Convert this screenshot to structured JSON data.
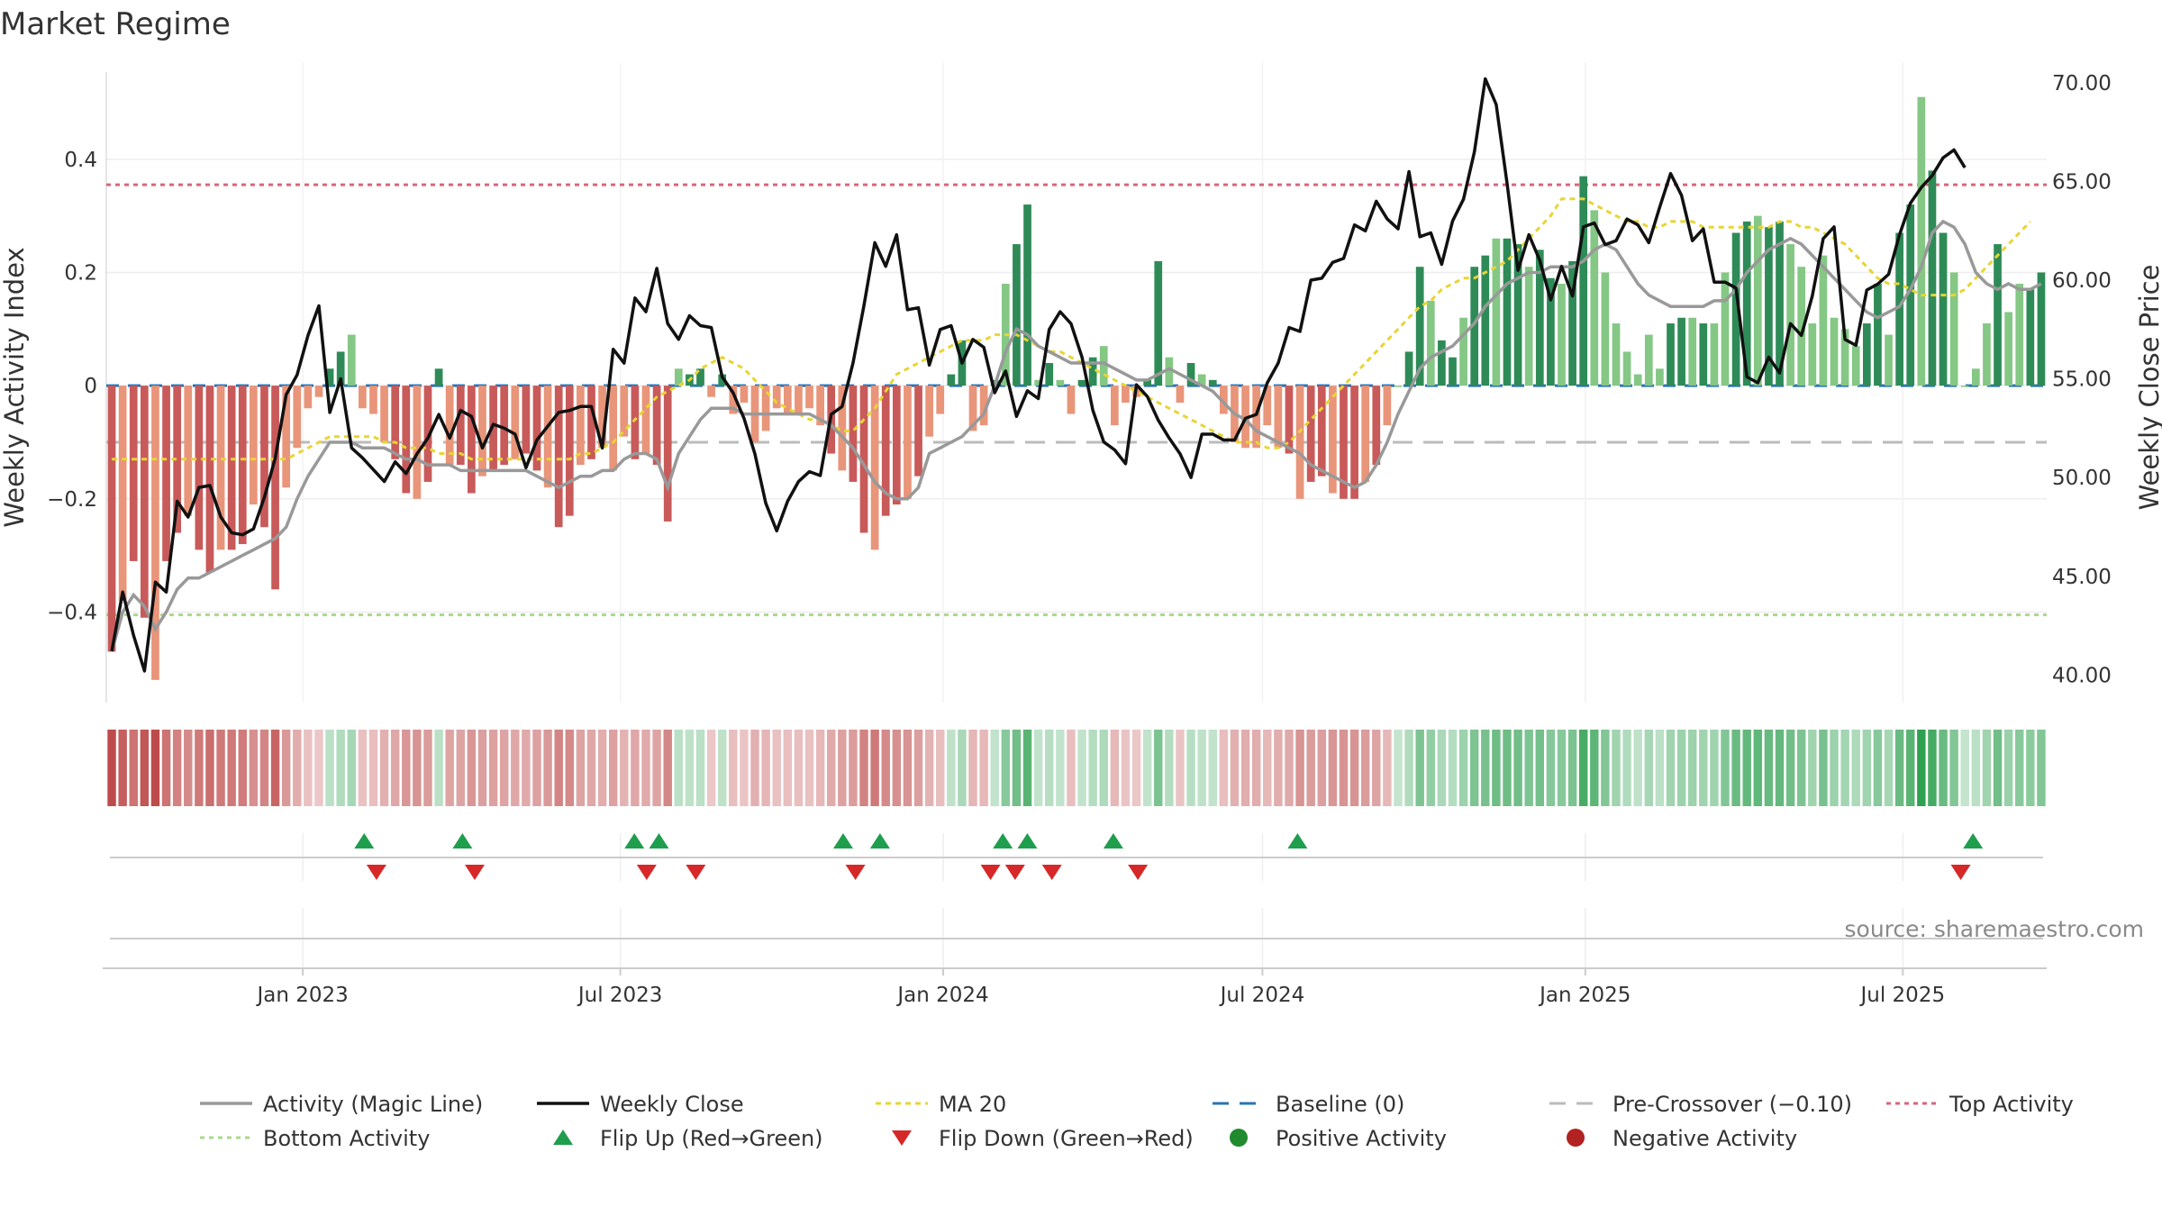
{
  "chart_data": {
    "type": "bar",
    "title": "Market Regime",
    "ylabel": "Weekly Activity Index",
    "y2label": "Weekly Close Price",
    "source": "source: sharemaestro.com",
    "x_range": [
      "2022-09-11",
      "2025-09-21"
    ],
    "ylim": [
      -0.56,
      0.57
    ],
    "y2lim": [
      38.6,
      71.0
    ],
    "yticks": [
      {
        "value": 0.4,
        "label": "0.4"
      },
      {
        "value": 0.2,
        "label": "0.2"
      },
      {
        "value": 0,
        "label": "0"
      },
      {
        "value": -0.2,
        "label": "−0.2"
      },
      {
        "value": -0.4,
        "label": "−0.4"
      }
    ],
    "y2ticks": [
      {
        "value": 70,
        "label": "70.00"
      },
      {
        "value": 65,
        "label": "65.00"
      },
      {
        "value": 60,
        "label": "60.00"
      },
      {
        "value": 55,
        "label": "55.00"
      },
      {
        "value": 50,
        "label": "50.00"
      },
      {
        "value": 45,
        "label": "45.00"
      },
      {
        "value": 40,
        "label": "40.00"
      }
    ],
    "xticks": [
      {
        "date": "2023-01-01",
        "label": "Jan 2023"
      },
      {
        "date": "2023-07-01",
        "label": "Jul 2023"
      },
      {
        "date": "2024-01-01",
        "label": "Jan 2024"
      },
      {
        "date": "2024-07-01",
        "label": "Jul 2024"
      },
      {
        "date": "2025-01-01",
        "label": "Jan 2025"
      },
      {
        "date": "2025-07-01",
        "label": "Jul 2025"
      }
    ],
    "reference_lines": {
      "top_activity": 0.355,
      "bottom_activity": -0.405,
      "pre_crossover": -0.1,
      "baseline": 0
    },
    "activity_index": [
      -0.47,
      -0.38,
      -0.31,
      -0.41,
      -0.52,
      -0.31,
      -0.26,
      -0.23,
      -0.29,
      -0.33,
      -0.29,
      -0.29,
      -0.28,
      -0.21,
      -0.25,
      -0.36,
      -0.18,
      -0.11,
      -0.04,
      -0.02,
      0.03,
      0.06,
      0.09,
      -0.04,
      -0.05,
      -0.1,
      -0.13,
      -0.19,
      -0.2,
      -0.17,
      0.03,
      -0.14,
      -0.14,
      -0.19,
      -0.16,
      -0.15,
      -0.14,
      -0.13,
      -0.12,
      -0.15,
      -0.18,
      -0.25,
      -0.23,
      -0.14,
      -0.13,
      -0.11,
      -0.15,
      -0.09,
      -0.13,
      -0.12,
      -0.14,
      -0.24,
      0.03,
      0.02,
      0.03,
      -0.02,
      0.02,
      -0.05,
      -0.03,
      -0.1,
      -0.08,
      -0.04,
      -0.05,
      -0.05,
      -0.04,
      -0.07,
      -0.12,
      -0.15,
      -0.17,
      -0.26,
      -0.29,
      -0.23,
      -0.21,
      -0.2,
      -0.16,
      -0.09,
      -0.05,
      0.02,
      0.08,
      -0.08,
      -0.07,
      0.01,
      0.18,
      0.25,
      0.32,
      0.01,
      0.04,
      0.01,
      -0.05,
      0.01,
      0.05,
      0.07,
      -0.07,
      -0.03,
      -0.02,
      0.01,
      0.22,
      0.05,
      -0.03,
      0.04,
      0.02,
      0.01,
      -0.05,
      -0.1,
      -0.11,
      -0.11,
      -0.07,
      -0.11,
      -0.12,
      -0.2,
      -0.17,
      -0.16,
      -0.19,
      -0.2,
      -0.2,
      -0.17,
      -0.14,
      -0.07,
      0.0,
      0.06,
      0.21,
      0.15,
      0.08,
      0.05,
      0.12,
      0.21,
      0.23,
      0.26,
      0.26,
      0.25,
      0.21,
      0.24,
      0.19,
      0.18,
      0.22,
      0.37,
      0.31,
      0.2,
      0.11,
      0.06,
      0.02,
      0.09,
      0.03,
      0.11,
      0.12,
      0.12,
      0.11,
      0.11,
      0.2,
      0.27,
      0.29,
      0.3,
      0.28,
      0.29,
      0.25,
      0.21,
      0.11,
      0.23,
      0.12,
      0.1,
      0.07,
      0.11,
      0.18,
      0.09,
      0.27,
      0.32,
      0.51,
      0.38,
      0.27,
      0.2,
      0.0,
      0.03,
      0.11,
      0.25,
      0.13,
      0.18,
      0.17,
      0.2
    ],
    "weekly_close": [
      41.2,
      44.2,
      42.0,
      40.2,
      44.7,
      44.2,
      48.8,
      48.0,
      49.5,
      49.6,
      48.0,
      47.2,
      47.1,
      47.4,
      49.0,
      51.0,
      54.2,
      55.2,
      57.2,
      58.7,
      53.3,
      55.0,
      51.5,
      51.0,
      50.4,
      49.8,
      50.8,
      50.2,
      51.2,
      52.0,
      53.2,
      52.0,
      53.4,
      53.1,
      51.5,
      52.7,
      52.5,
      52.2,
      50.5,
      51.9,
      52.6,
      53.3,
      53.4,
      53.6,
      53.6,
      51.5,
      56.5,
      55.8,
      59.1,
      58.4,
      60.6,
      57.8,
      57.0,
      58.2,
      57.7,
      57.6,
      55.1,
      54.3,
      53.0,
      51.2,
      48.7,
      47.3,
      48.8,
      49.8,
      50.3,
      50.1,
      53.2,
      53.6,
      55.8,
      58.7,
      61.9,
      60.7,
      62.3,
      58.5,
      58.6,
      55.7,
      57.5,
      57.7,
      55.8,
      57.0,
      56.6,
      54.3,
      55.4,
      53.1,
      54.4,
      54.0,
      57.5,
      58.4,
      57.8,
      56.1,
      53.4,
      51.8,
      51.4,
      50.7,
      54.7,
      54.1,
      52.9,
      52.0,
      51.2,
      50.0,
      52.2,
      52.2,
      51.9,
      51.9,
      53.0,
      53.2,
      54.8,
      55.8,
      57.6,
      57.4,
      60.0,
      60.1,
      60.9,
      61.1,
      62.8,
      62.5,
      64.0,
      63.1,
      62.6,
      65.5,
      62.2,
      62.4,
      60.8,
      63.0,
      64.1,
      66.5,
      70.2,
      68.9,
      64.9,
      60.5,
      62.3,
      61.0,
      59.0,
      60.7,
      59.2,
      62.7,
      62.9,
      61.8,
      62.0,
      63.1,
      62.8,
      61.9,
      63.7,
      65.4,
      64.3,
      62.0,
      62.6,
      59.9,
      59.9,
      59.6,
      55.1,
      54.8,
      56.1,
      55.3,
      57.8,
      57.2,
      59.2,
      62.1,
      62.7,
      57.0,
      56.7,
      59.5,
      59.8,
      60.3,
      62.3,
      63.9,
      64.7,
      65.3,
      66.2,
      66.6,
      65.7
    ],
    "activity_magic_line": [
      -0.47,
      -0.4,
      -0.37,
      -0.39,
      -0.43,
      -0.4,
      -0.36,
      -0.34,
      -0.34,
      -0.33,
      -0.32,
      -0.31,
      -0.3,
      -0.29,
      -0.28,
      -0.27,
      -0.25,
      -0.2,
      -0.16,
      -0.13,
      -0.1,
      -0.1,
      -0.1,
      -0.11,
      -0.11,
      -0.11,
      -0.12,
      -0.13,
      -0.13,
      -0.14,
      -0.14,
      -0.14,
      -0.15,
      -0.15,
      -0.15,
      -0.15,
      -0.15,
      -0.15,
      -0.15,
      -0.16,
      -0.17,
      -0.18,
      -0.17,
      -0.16,
      -0.16,
      -0.15,
      -0.15,
      -0.13,
      -0.12,
      -0.12,
      -0.13,
      -0.18,
      -0.12,
      -0.09,
      -0.06,
      -0.04,
      -0.04,
      -0.04,
      -0.05,
      -0.05,
      -0.05,
      -0.05,
      -0.05,
      -0.05,
      -0.05,
      -0.06,
      -0.07,
      -0.09,
      -0.11,
      -0.14,
      -0.17,
      -0.19,
      -0.2,
      -0.2,
      -0.18,
      -0.12,
      -0.11,
      -0.1,
      -0.09,
      -0.07,
      -0.05,
      0.0,
      0.06,
      0.1,
      0.09,
      0.07,
      0.06,
      0.05,
      0.04,
      0.04,
      0.04,
      0.04,
      0.03,
      0.02,
      0.01,
      0.01,
      0.02,
      0.03,
      0.02,
      0.01,
      0.0,
      -0.01,
      -0.03,
      -0.05,
      -0.06,
      -0.08,
      -0.09,
      -0.1,
      -0.11,
      -0.12,
      -0.14,
      -0.15,
      -0.16,
      -0.17,
      -0.18,
      -0.17,
      -0.14,
      -0.1,
      -0.05,
      -0.01,
      0.03,
      0.05,
      0.06,
      0.07,
      0.09,
      0.11,
      0.14,
      0.16,
      0.18,
      0.19,
      0.2,
      0.2,
      0.21,
      0.21,
      0.21,
      0.22,
      0.24,
      0.25,
      0.24,
      0.21,
      0.18,
      0.16,
      0.15,
      0.14,
      0.14,
      0.14,
      0.14,
      0.15,
      0.15,
      0.17,
      0.2,
      0.22,
      0.24,
      0.25,
      0.26,
      0.25,
      0.23,
      0.21,
      0.19,
      0.17,
      0.15,
      0.13,
      0.12,
      0.13,
      0.14,
      0.17,
      0.21,
      0.27,
      0.29,
      0.28,
      0.25,
      0.2,
      0.18,
      0.17,
      0.18,
      0.17,
      0.17,
      0.18
    ],
    "ma20": [
      -0.13,
      -0.13,
      -0.13,
      -0.13,
      -0.13,
      -0.13,
      -0.13,
      -0.13,
      -0.13,
      -0.13,
      -0.13,
      -0.13,
      -0.13,
      -0.13,
      -0.13,
      -0.13,
      -0.13,
      -0.12,
      -0.11,
      -0.1,
      -0.09,
      -0.09,
      -0.09,
      -0.09,
      -0.09,
      -0.1,
      -0.1,
      -0.11,
      -0.11,
      -0.11,
      -0.12,
      -0.12,
      -0.12,
      -0.13,
      -0.13,
      -0.13,
      -0.13,
      -0.13,
      -0.13,
      -0.13,
      -0.13,
      -0.13,
      -0.13,
      -0.12,
      -0.12,
      -0.11,
      -0.1,
      -0.08,
      -0.06,
      -0.04,
      -0.02,
      -0.01,
      0.0,
      0.01,
      0.03,
      0.04,
      0.05,
      0.04,
      0.03,
      0.01,
      -0.01,
      -0.03,
      -0.04,
      -0.05,
      -0.06,
      -0.06,
      -0.07,
      -0.08,
      -0.08,
      -0.06,
      -0.04,
      -0.01,
      0.02,
      0.03,
      0.04,
      0.05,
      0.06,
      0.07,
      0.08,
      0.08,
      0.08,
      0.09,
      0.09,
      0.09,
      0.08,
      0.07,
      0.06,
      0.06,
      0.05,
      0.04,
      0.03,
      0.02,
      0.01,
      -0.0,
      -0.01,
      -0.02,
      -0.03,
      -0.04,
      -0.05,
      -0.06,
      -0.07,
      -0.08,
      -0.09,
      -0.1,
      -0.1,
      -0.1,
      -0.11,
      -0.11,
      -0.1,
      -0.08,
      -0.06,
      -0.04,
      -0.02,
      0.0,
      0.02,
      0.04,
      0.06,
      0.08,
      0.1,
      0.12,
      0.14,
      0.15,
      0.17,
      0.18,
      0.19,
      0.19,
      0.2,
      0.21,
      0.22,
      0.24,
      0.26,
      0.28,
      0.3,
      0.33,
      0.33,
      0.33,
      0.32,
      0.31,
      0.3,
      0.29,
      0.29,
      0.28,
      0.28,
      0.29,
      0.29,
      0.29,
      0.28,
      0.28,
      0.28,
      0.28,
      0.28,
      0.28,
      0.28,
      0.29,
      0.29,
      0.28,
      0.28,
      0.27,
      0.26,
      0.25,
      0.23,
      0.21,
      0.19,
      0.18,
      0.18,
      0.17,
      0.16,
      0.16,
      0.16,
      0.16,
      0.17,
      0.19,
      0.21,
      0.23,
      0.25,
      0.27,
      0.29
    ],
    "flip_up_dates": [
      "2023-02-05",
      "2023-04-02",
      "2023-07-09",
      "2023-07-23",
      "2023-11-05",
      "2023-11-26",
      "2024-02-04",
      "2024-02-18",
      "2024-04-07",
      "2024-07-21",
      "2025-08-10"
    ],
    "flip_down_dates": [
      "2023-02-12",
      "2023-04-09",
      "2023-07-16",
      "2023-08-13",
      "2023-11-12",
      "2024-01-28",
      "2024-02-11",
      "2024-03-03",
      "2024-04-21",
      "2025-08-03"
    ],
    "legend": [
      {
        "key": "magic",
        "label": "Activity (Magic Line)"
      },
      {
        "key": "close",
        "label": "Weekly Close"
      },
      {
        "key": "ma20",
        "label": "MA 20"
      },
      {
        "key": "baseline",
        "label": "Baseline (0)"
      },
      {
        "key": "precross",
        "label": "Pre-Crossover (−0.10)"
      },
      {
        "key": "top",
        "label": "Top Activity"
      },
      {
        "key": "bottom",
        "label": "Bottom Activity"
      },
      {
        "key": "flipup",
        "label": "Flip Up (Red→Green)"
      },
      {
        "key": "flipdown",
        "label": "Flip Down (Green→Red)"
      },
      {
        "key": "positive",
        "label": "Positive Activity"
      },
      {
        "key": "negative",
        "label": "Negative Activity"
      }
    ],
    "colors": {
      "positive_strong": "#2e8b57",
      "positive_light": "#85c785",
      "negative_strong": "#c85a5a",
      "negative_light": "#e8957a",
      "magic_line": "#999999",
      "close": "#111111",
      "ma20": "#e8d534",
      "baseline": "#2a73b5",
      "pre_crossover": "#bbbbbb",
      "top_activity": "#d9667a",
      "bottom_activity": "#a8d98a",
      "flip_up": "#1f9e4e",
      "flip_down": "#d62828",
      "positive_dot": "#1f8a2e",
      "negative_dot": "#b22222"
    }
  }
}
